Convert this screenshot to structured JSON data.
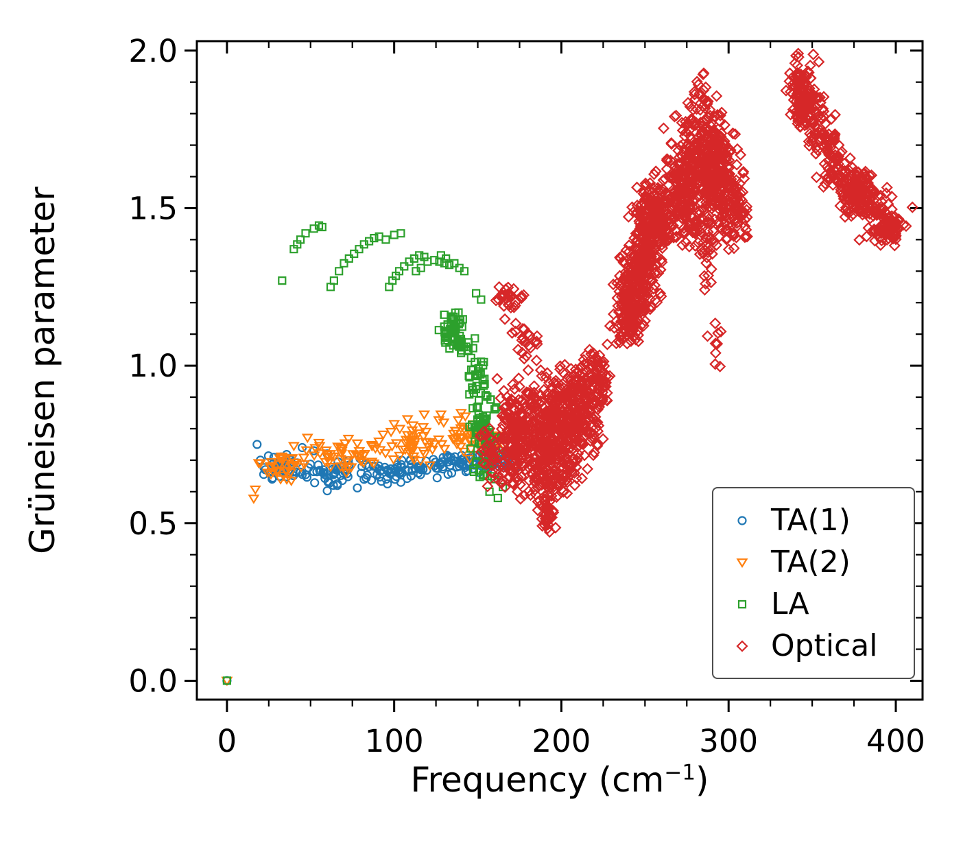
{
  "chart_data": {
    "type": "scatter",
    "title": "",
    "xlabel_prefix": "Frequency (cm",
    "xlabel_sup": "−1",
    "xlabel_suffix": ")",
    "ylabel": "Grüneisen parameter",
    "xlim": [
      -18,
      416
    ],
    "ylim": [
      -0.06,
      2.03
    ],
    "grid": false,
    "legend_position": "lower right",
    "x_ticks": [
      {
        "value": 0,
        "label": "0"
      },
      {
        "value": 100,
        "label": "100"
      },
      {
        "value": 200,
        "label": "200"
      },
      {
        "value": 300,
        "label": "300"
      },
      {
        "value": 400,
        "label": "400"
      }
    ],
    "x_minor_ticks": [
      25,
      50,
      75,
      125,
      150,
      175,
      225,
      250,
      275,
      325,
      350,
      375
    ],
    "y_ticks": [
      {
        "value": 0.0,
        "label": "0.0"
      },
      {
        "value": 0.5,
        "label": "0.5"
      },
      {
        "value": 1.0,
        "label": "1.0"
      },
      {
        "value": 1.5,
        "label": "1.5"
      },
      {
        "value": 2.0,
        "label": "2.0"
      }
    ],
    "y_minor_ticks": [
      0.1,
      0.2,
      0.3,
      0.4,
      0.6,
      0.7,
      0.8,
      0.9,
      1.1,
      1.2,
      1.3,
      1.4,
      1.6,
      1.7,
      1.8,
      1.9
    ],
    "series": [
      {
        "label": "TA(1)",
        "marker": "circle",
        "color": "#1f77b4",
        "seed": 11,
        "points": [
          [
            0,
            0
          ],
          [
            18,
            0.75
          ],
          [
            20,
            0.7
          ],
          [
            22,
            0.655
          ],
          [
            27,
            0.64
          ],
          [
            45,
            0.74
          ],
          [
            52,
            0.73
          ],
          [
            60,
            0.603
          ],
          [
            60,
            0.72
          ],
          [
            66,
            0.62
          ],
          [
            78,
            0.612
          ],
          [
            96,
            0.625
          ],
          [
            104,
            0.63
          ]
        ],
        "blobs": [
          {
            "x": [
              15,
              50
            ],
            "y": [
              0.635,
              0.725
            ],
            "n": 35
          },
          {
            "x": [
              38,
              92
            ],
            "y": [
              0.615,
              0.71
            ],
            "n": 48
          },
          {
            "x": [
              80,
              132
            ],
            "y": [
              0.63,
              0.715
            ],
            "n": 55
          },
          {
            "x": [
              118,
              162
            ],
            "y": [
              0.65,
              0.73
            ],
            "n": 55
          },
          {
            "x": [
              150,
              176
            ],
            "y": [
              0.665,
              0.74
            ],
            "n": 30
          }
        ],
        "trends": []
      },
      {
        "label": "TA(2)",
        "marker": "triangle-down",
        "color": "#ff7f0e",
        "seed": 22,
        "points": [
          [
            0,
            0
          ],
          [
            16,
            0.578
          ],
          [
            17,
            0.607
          ],
          [
            20,
            0.69
          ],
          [
            33,
            0.71
          ],
          [
            40,
            0.745
          ],
          [
            55,
            0.755
          ],
          [
            72,
            0.7
          ],
          [
            100,
            0.815
          ],
          [
            108,
            0.83
          ],
          [
            118,
            0.845
          ],
          [
            128,
            0.845
          ],
          [
            140,
            0.85
          ]
        ],
        "blobs": [
          {
            "x": [
              18,
              55
            ],
            "y": [
              0.625,
              0.745
            ],
            "n": 32
          },
          {
            "x": [
              45,
              95
            ],
            "y": [
              0.65,
              0.785
            ],
            "n": 45
          },
          {
            "x": [
              85,
              132
            ],
            "y": [
              0.68,
              0.835
            ],
            "n": 45
          },
          {
            "x": [
              120,
              160
            ],
            "y": [
              0.7,
              0.85
            ],
            "n": 40
          },
          {
            "x": [
              148,
              172
            ],
            "y": [
              0.72,
              0.8
            ],
            "n": 18
          }
        ],
        "trends": []
      },
      {
        "label": "LA",
        "marker": "square",
        "color": "#2ca02c",
        "seed": 33,
        "points": [
          [
            0,
            0
          ],
          [
            33,
            1.27
          ],
          [
            40,
            1.37
          ],
          [
            42,
            1.385
          ],
          [
            44,
            1.4
          ],
          [
            47,
            1.42
          ],
          [
            52,
            1.435
          ],
          [
            55,
            1.445
          ],
          [
            57,
            1.44
          ],
          [
            62,
            1.25
          ],
          [
            64,
            1.27
          ],
          [
            67,
            1.3
          ],
          [
            70,
            1.325
          ],
          [
            73,
            1.34
          ],
          [
            76,
            1.355
          ],
          [
            79,
            1.37
          ],
          [
            82,
            1.385
          ],
          [
            85,
            1.395
          ],
          [
            88,
            1.405
          ],
          [
            91,
            1.41
          ],
          [
            95,
            1.4
          ],
          [
            100,
            1.415
          ],
          [
            104,
            1.42
          ],
          [
            97,
            1.25
          ],
          [
            99,
            1.27
          ],
          [
            101,
            1.285
          ],
          [
            103,
            1.3
          ],
          [
            106,
            1.315
          ],
          [
            109,
            1.33
          ],
          [
            112,
            1.34
          ],
          [
            113,
            1.3
          ],
          [
            115,
            1.35
          ],
          [
            116,
            1.31
          ],
          [
            118,
            1.345
          ],
          [
            120,
            1.33
          ],
          [
            124,
            1.335
          ],
          [
            127,
            1.33
          ],
          [
            128,
            1.35
          ],
          [
            130,
            1.325
          ],
          [
            131,
            1.34
          ],
          [
            133,
            1.32
          ],
          [
            136,
            1.325
          ],
          [
            139,
            1.31
          ],
          [
            142,
            1.3
          ],
          [
            149,
            1.23
          ],
          [
            152,
            1.21
          ],
          [
            157,
            0.6
          ],
          [
            158,
            0.755
          ],
          [
            160,
            0.64
          ],
          [
            161,
            0.73
          ],
          [
            162,
            0.58
          ],
          [
            164,
            0.77
          ],
          [
            165,
            0.615
          ],
          [
            167,
            0.72
          ],
          [
            170,
            0.73
          ]
        ],
        "blobs": [
          {
            "x": [
              124,
              143
            ],
            "y": [
              1.05,
              1.18
            ],
            "n": 45
          },
          {
            "x": [
              134,
              150
            ],
            "y": [
              1.0,
              1.12
            ],
            "n": 20
          },
          {
            "x": [
              142,
              156
            ],
            "y": [
              0.88,
              1.05
            ],
            "n": 25
          },
          {
            "x": [
              144,
              162
            ],
            "y": [
              0.6,
              0.92
            ],
            "n": 60
          },
          {
            "x": [
              148,
              160
            ],
            "y": [
              0.72,
              0.85
            ],
            "n": 20
          }
        ],
        "trends": []
      },
      {
        "label": "Optical",
        "marker": "diamond",
        "color": "#d62728",
        "seed": 44,
        "points": [
          [
            292,
            1.005
          ]
        ],
        "blobs": [
          {
            "x": [
              158,
              178
            ],
            "y": [
              1.17,
              1.275
            ],
            "n": 28
          },
          {
            "x": [
              164,
              190
            ],
            "y": [
              1.0,
              1.165
            ],
            "n": 22
          },
          {
            "x": [
              150,
              166
            ],
            "y": [
              0.6,
              0.82
            ],
            "n": 40
          },
          {
            "x": [
              160,
              182
            ],
            "y": [
              0.6,
              0.97
            ],
            "n": 140
          },
          {
            "x": [
              172,
              202
            ],
            "y": [
              0.55,
              1.0
            ],
            "n": 260
          },
          {
            "x": [
              190,
              216
            ],
            "y": [
              0.57,
              1.02
            ],
            "n": 250
          },
          {
            "x": [
              202,
              226
            ],
            "y": [
              0.68,
              1.05
            ],
            "n": 130
          },
          {
            "x": [
              212,
              231
            ],
            "y": [
              0.85,
              1.06
            ],
            "n": 55
          },
          {
            "x": [
              185,
              197
            ],
            "y": [
              0.455,
              0.6
            ],
            "n": 38
          },
          {
            "x": [
              232,
              252
            ],
            "y": [
              1.05,
              1.38
            ],
            "n": 110
          },
          {
            "x": [
              240,
              262
            ],
            "y": [
              1.15,
              1.55
            ],
            "n": 150
          },
          {
            "x": [
              246,
              266
            ],
            "y": [
              1.35,
              1.6
            ],
            "n": 100
          },
          {
            "x": [
              236,
              250
            ],
            "y": [
              1.08,
              1.25
            ],
            "n": 50
          },
          {
            "x": [
              272,
              306
            ],
            "y": [
              1.33,
              1.8
            ],
            "n": 260
          },
          {
            "x": [
              280,
              302
            ],
            "y": [
              1.5,
              1.82
            ],
            "n": 130
          },
          {
            "x": [
              262,
              282
            ],
            "y": [
              1.38,
              1.7
            ],
            "n": 100
          },
          {
            "x": [
              296,
              312
            ],
            "y": [
              1.36,
              1.7
            ],
            "n": 80
          },
          {
            "x": [
              336,
              352
            ],
            "y": [
              1.76,
              1.96
            ],
            "n": 90
          },
          {
            "x": [
              366,
              388
            ],
            "y": [
              1.47,
              1.64
            ],
            "n": 100
          },
          {
            "x": [
              390,
              404
            ],
            "y": [
              1.385,
              1.48
            ],
            "n": 50
          }
        ],
        "trends": [
          {
            "from": [
              262,
              1.4
            ],
            "to": [
              285,
              1.86
            ],
            "sx": 6,
            "sy": 0.05,
            "n": 170
          },
          {
            "from": [
              236,
              1.1
            ],
            "to": [
              254,
              1.52
            ],
            "sx": 5,
            "sy": 0.06,
            "n": 130
          },
          {
            "from": [
              284,
              1.44
            ],
            "to": [
              293,
              1.04
            ],
            "sx": 2,
            "sy": 0.03,
            "n": 22
          },
          {
            "from": [
              340,
              1.94
            ],
            "to": [
              364,
              1.62
            ],
            "sx": 4,
            "sy": 0.045,
            "n": 170
          },
          {
            "from": [
              362,
              1.63
            ],
            "to": [
              400,
              1.42
            ],
            "sx": 5,
            "sy": 0.04,
            "n": 140
          }
        ]
      }
    ]
  }
}
